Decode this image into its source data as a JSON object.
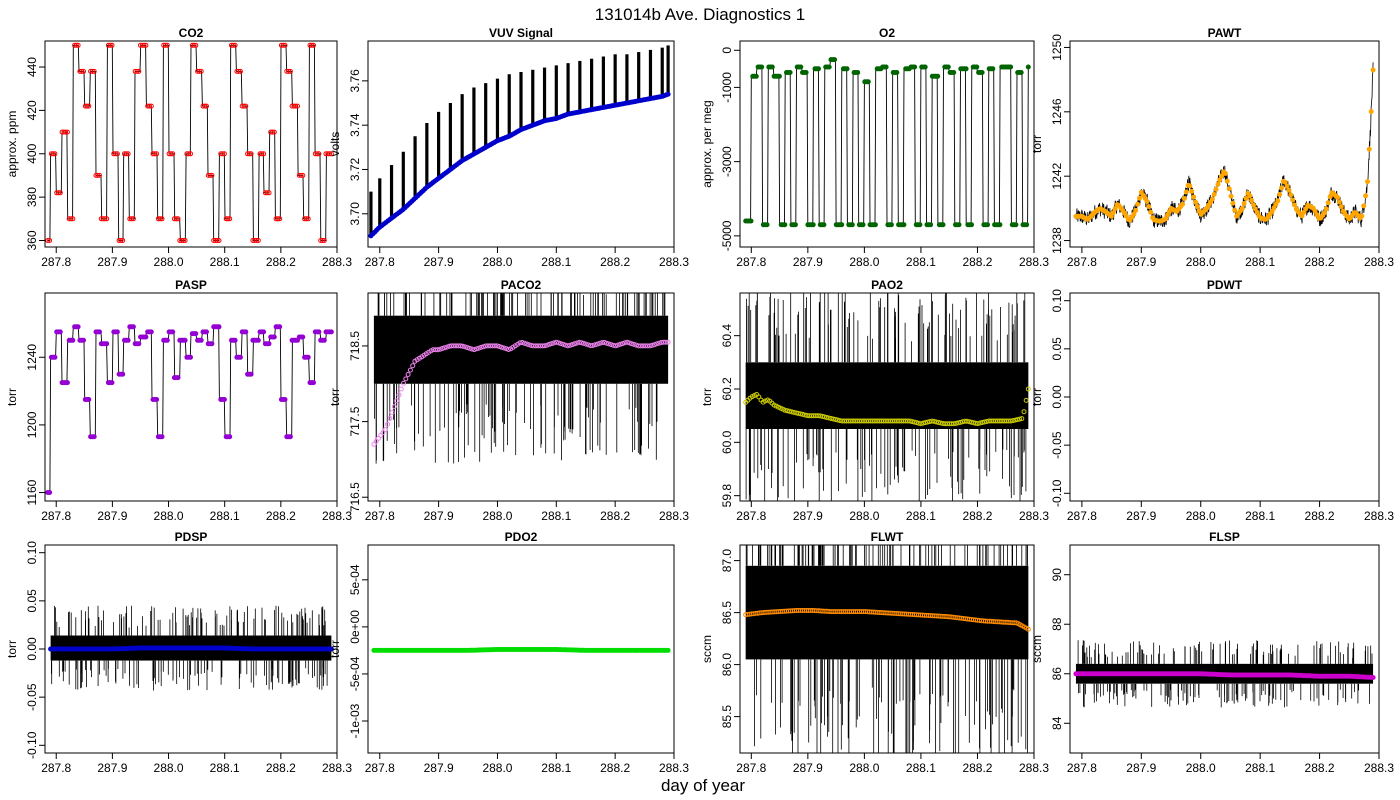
{
  "figure": {
    "title": "131014b   Ave. Diagnostics 1",
    "xlabel": "day of year"
  },
  "chart_data": [
    {
      "type": "line",
      "title": "CO2",
      "ylabel": "approx. ppm",
      "xlim": [
        287.78,
        288.3
      ],
      "ylim": [
        357,
        452
      ],
      "xticks": [
        "287.8",
        "287.9",
        "288.0",
        "288.1",
        "288.2",
        "288.3"
      ],
      "yticks": [
        "360",
        "380",
        "400",
        "420",
        "440"
      ],
      "style": "step",
      "point_color": "#ff0000",
      "points_hollow": true,
      "n_points": 160,
      "x": [
        287.785,
        287.79,
        287.8,
        287.81,
        287.82,
        287.83,
        287.84,
        287.85,
        287.86,
        287.87,
        287.88,
        287.89,
        287.9,
        287.91,
        287.92,
        287.93,
        287.94,
        287.95,
        287.96,
        287.97,
        287.98,
        287.99,
        288.0,
        288.01,
        288.02,
        288.03,
        288.04,
        288.05,
        288.06,
        288.07,
        288.08,
        288.09,
        288.1,
        288.11,
        288.12,
        288.13,
        288.14,
        288.15,
        288.16,
        288.17,
        288.18,
        288.19,
        288.2,
        288.21,
        288.22,
        288.23,
        288.24,
        288.25,
        288.26,
        288.27,
        288.28,
        288.29
      ],
      "y": [
        360,
        400,
        382,
        410,
        370,
        450,
        438,
        422,
        438,
        390,
        370,
        450,
        400,
        360,
        400,
        370,
        438,
        450,
        422,
        400,
        370,
        450,
        400,
        370,
        360,
        400,
        450,
        438,
        422,
        390,
        360,
        400,
        370,
        450,
        438,
        422,
        400,
        360,
        400,
        382,
        410,
        370,
        450,
        438,
        422,
        390,
        370,
        450,
        400,
        360,
        400,
        400
      ]
    },
    {
      "type": "line",
      "title": "VUV Signal",
      "ylabel": "volts",
      "xlim": [
        287.78,
        288.3
      ],
      "ylim": [
        3.685,
        3.778
      ],
      "xticks": [
        "287.8",
        "287.9",
        "288.0",
        "288.1",
        "288.2",
        "288.3"
      ],
      "yticks": [
        "3.70",
        "3.72",
        "3.74",
        "3.76"
      ],
      "style": "spikes",
      "point_color": "#0000cc",
      "points_hollow": false,
      "n_points": 160,
      "x": [
        287.785,
        287.8,
        287.82,
        287.84,
        287.86,
        287.88,
        287.9,
        287.92,
        287.94,
        287.96,
        287.98,
        288.0,
        288.02,
        288.04,
        288.06,
        288.08,
        288.1,
        288.12,
        288.14,
        288.16,
        288.18,
        288.2,
        288.22,
        288.24,
        288.26,
        288.28,
        288.29
      ],
      "y": [
        3.69,
        3.694,
        3.698,
        3.702,
        3.707,
        3.712,
        3.716,
        3.72,
        3.724,
        3.727,
        3.73,
        3.733,
        3.735,
        3.738,
        3.74,
        3.742,
        3.743,
        3.745,
        3.746,
        3.747,
        3.748,
        3.749,
        3.75,
        3.751,
        3.752,
        3.753,
        3.754
      ],
      "spike_top_y": [
        3.71,
        3.716,
        3.722,
        3.728,
        3.735,
        3.741,
        3.746,
        3.75,
        3.754,
        3.757,
        3.759,
        3.761,
        3.763,
        3.764,
        3.765,
        3.766,
        3.767,
        3.768,
        3.769,
        3.77,
        3.771,
        3.772,
        3.772,
        3.773,
        3.774,
        3.775,
        3.776
      ]
    },
    {
      "type": "line",
      "title": "O2",
      "ylabel": "approx. per meg",
      "xlim": [
        287.78,
        288.3
      ],
      "ylim": [
        -5300,
        250
      ],
      "xticks": [
        "287.8",
        "287.9",
        "288.0",
        "288.1",
        "288.2",
        "288.3"
      ],
      "yticks": [
        "-5000",
        "-3000",
        "-1000",
        "0"
      ],
      "style": "step",
      "point_color": "#006400",
      "points_hollow": false,
      "n_points": 160,
      "x": [
        287.79,
        287.8,
        287.81,
        287.82,
        287.83,
        287.84,
        287.85,
        287.86,
        287.87,
        287.88,
        287.89,
        287.9,
        287.91,
        287.92,
        287.93,
        287.94,
        287.95,
        287.96,
        287.97,
        287.98,
        287.99,
        288.0,
        288.01,
        288.02,
        288.03,
        288.04,
        288.05,
        288.06,
        288.07,
        288.08,
        288.09,
        288.1,
        288.11,
        288.12,
        288.13,
        288.14,
        288.15,
        288.16,
        288.17,
        288.18,
        288.19,
        288.2,
        288.21,
        288.22,
        288.23,
        288.24,
        288.25,
        288.26,
        288.27,
        288.28,
        288.29
      ],
      "y": [
        -4600,
        -700,
        -450,
        -4700,
        -450,
        -700,
        -4700,
        -600,
        -4700,
        -450,
        -600,
        -4700,
        -500,
        -4700,
        -450,
        -250,
        -4700,
        -500,
        -4700,
        -600,
        -4700,
        -850,
        -4700,
        -500,
        -450,
        -4700,
        -600,
        -4700,
        -500,
        -450,
        -4700,
        -450,
        -4700,
        -700,
        -4700,
        -450,
        -600,
        -4700,
        -500,
        -4700,
        -450,
        -600,
        -4700,
        -500,
        -4700,
        -450,
        -450,
        -4700,
        -600,
        -4700,
        -450
      ]
    },
    {
      "type": "line",
      "title": "PAWT",
      "ylabel": "torr",
      "xlim": [
        287.78,
        288.3
      ],
      "ylim": [
        1237.6,
        1250.4
      ],
      "xticks": [
        "287.8",
        "287.9",
        "288.0",
        "288.1",
        "288.2",
        "288.3"
      ],
      "yticks": [
        "1238",
        "1242",
        "1246",
        "1250"
      ],
      "style": "noisy",
      "noise": 1.0,
      "point_color": "#ffa500",
      "points_hollow": false,
      "n_points": 160,
      "x": [
        287.79,
        287.8,
        287.81,
        287.82,
        287.83,
        287.84,
        287.85,
        287.86,
        287.87,
        287.88,
        287.89,
        287.9,
        287.91,
        287.92,
        287.93,
        287.94,
        287.95,
        287.96,
        287.97,
        287.98,
        287.99,
        288.0,
        288.01,
        288.02,
        288.03,
        288.04,
        288.05,
        288.06,
        288.07,
        288.08,
        288.09,
        288.1,
        288.11,
        288.12,
        288.13,
        288.14,
        288.15,
        288.16,
        288.17,
        288.18,
        288.19,
        288.2,
        288.21,
        288.22,
        288.23,
        288.24,
        288.25,
        288.26,
        288.27,
        288.28,
        288.285,
        288.29
      ],
      "y": [
        1239.5,
        1239.5,
        1239.3,
        1239.7,
        1240.0,
        1239.8,
        1239.5,
        1240.3,
        1239.8,
        1239.2,
        1239.8,
        1241.0,
        1240.4,
        1239.3,
        1239.2,
        1239.3,
        1240.0,
        1239.8,
        1240.3,
        1241.6,
        1240.5,
        1239.6,
        1240.0,
        1240.6,
        1241.6,
        1242.4,
        1240.9,
        1239.5,
        1240.0,
        1241.0,
        1240.1,
        1239.4,
        1239.3,
        1239.8,
        1240.5,
        1241.8,
        1241.0,
        1240.0,
        1239.5,
        1240.2,
        1240.0,
        1239.3,
        1239.8,
        1241.0,
        1240.7,
        1239.8,
        1239.3,
        1239.8,
        1239.3,
        1241.3,
        1244.5,
        1248.6
      ]
    },
    {
      "type": "line",
      "title": "PASP",
      "ylabel": "torr",
      "xlim": [
        287.78,
        288.3
      ],
      "ylim": [
        1155,
        1278
      ],
      "xticks": [
        "287.8",
        "287.9",
        "288.0",
        "288.1",
        "288.2",
        "288.3"
      ],
      "yticks": [
        "1160",
        "1200",
        "1240"
      ],
      "style": "step",
      "point_color": "#9400d3",
      "points_hollow": false,
      "n_points": 160,
      "x": [
        287.785,
        287.79,
        287.8,
        287.81,
        287.82,
        287.83,
        287.84,
        287.85,
        287.86,
        287.87,
        287.88,
        287.89,
        287.9,
        287.91,
        287.92,
        287.93,
        287.94,
        287.95,
        287.96,
        287.97,
        287.98,
        287.99,
        288.0,
        288.01,
        288.02,
        288.03,
        288.04,
        288.05,
        288.06,
        288.07,
        288.08,
        288.09,
        288.1,
        288.11,
        288.12,
        288.13,
        288.14,
        288.15,
        288.16,
        288.17,
        288.18,
        288.19,
        288.2,
        288.21,
        288.22,
        288.23,
        288.24,
        288.25,
        288.26,
        288.27,
        288.28,
        288.29
      ],
      "y": [
        1160,
        1240,
        1255,
        1225,
        1250,
        1258,
        1250,
        1215,
        1193,
        1255,
        1248,
        1225,
        1255,
        1230,
        1250,
        1258,
        1248,
        1252,
        1255,
        1215,
        1193,
        1250,
        1255,
        1228,
        1250,
        1240,
        1254,
        1250,
        1255,
        1248,
        1258,
        1215,
        1193,
        1250,
        1240,
        1255,
        1230,
        1250,
        1255,
        1248,
        1252,
        1258,
        1215,
        1193,
        1250,
        1252,
        1240,
        1225,
        1255,
        1250,
        1255,
        1255
      ]
    },
    {
      "type": "line",
      "title": "PACO2",
      "ylabel": "torr",
      "xlim": [
        287.78,
        288.3
      ],
      "ylim": [
        716.45,
        719.2
      ],
      "xticks": [
        "287.8",
        "287.9",
        "288.0",
        "288.1",
        "288.2",
        "288.3"
      ],
      "yticks": [
        "716.5",
        "717.5",
        "718.5"
      ],
      "style": "band",
      "band_lo": 718.0,
      "band_hi": 718.9,
      "point_color": "#ee82ee",
      "points_hollow": true,
      "n_points": 130,
      "x": [
        287.79,
        287.8,
        287.81,
        287.82,
        287.83,
        287.84,
        287.85,
        287.86,
        287.87,
        287.88,
        287.89,
        287.9,
        287.92,
        287.94,
        287.96,
        287.98,
        288.0,
        288.02,
        288.04,
        288.06,
        288.08,
        288.1,
        288.12,
        288.14,
        288.16,
        288.18,
        288.2,
        288.22,
        288.24,
        288.26,
        288.28,
        288.29
      ],
      "y": [
        717.2,
        717.3,
        717.4,
        717.6,
        717.8,
        718.0,
        718.15,
        718.3,
        718.35,
        718.4,
        718.45,
        718.45,
        718.5,
        718.5,
        718.45,
        718.5,
        718.5,
        718.45,
        718.55,
        718.5,
        718.5,
        718.55,
        718.5,
        718.55,
        718.5,
        718.55,
        718.5,
        718.55,
        718.5,
        718.5,
        718.55,
        718.55
      ]
    },
    {
      "type": "line",
      "title": "PAO2",
      "ylabel": "torr",
      "xlim": [
        287.78,
        288.3
      ],
      "ylim": [
        59.78,
        60.56
      ],
      "xticks": [
        "287.8",
        "287.9",
        "288.0",
        "288.1",
        "288.2",
        "288.3"
      ],
      "yticks": [
        "59.8",
        "60.0",
        "60.2",
        "60.4"
      ],
      "style": "band",
      "band_lo": 60.05,
      "band_hi": 60.3,
      "point_color": "#cccc00",
      "points_hollow": true,
      "n_points": 130,
      "x": [
        287.79,
        287.8,
        287.81,
        287.82,
        287.83,
        287.84,
        287.85,
        287.86,
        287.88,
        287.9,
        287.92,
        287.94,
        287.96,
        287.98,
        288.0,
        288.02,
        288.04,
        288.06,
        288.08,
        288.1,
        288.12,
        288.14,
        288.16,
        288.18,
        288.2,
        288.22,
        288.24,
        288.26,
        288.28,
        288.29
      ],
      "y": [
        60.15,
        60.17,
        60.18,
        60.15,
        60.16,
        60.14,
        60.13,
        60.12,
        60.11,
        60.1,
        60.1,
        60.09,
        60.08,
        60.08,
        60.08,
        60.08,
        60.08,
        60.08,
        60.08,
        60.07,
        60.08,
        60.07,
        60.07,
        60.08,
        60.07,
        60.08,
        60.08,
        60.08,
        60.09,
        60.2
      ]
    },
    {
      "type": "line",
      "title": "PDWT",
      "ylabel": "torr",
      "xlim": [
        287.78,
        288.3
      ],
      "ylim": [
        -0.108,
        0.108
      ],
      "xticks": [
        "287.8",
        "287.9",
        "288.0",
        "288.1",
        "288.2",
        "288.3"
      ],
      "yticks": [
        "-0.10",
        "-0.05",
        "0.00",
        "0.05",
        "0.10"
      ],
      "style": "none",
      "point_color": "#000000",
      "points_hollow": false,
      "n_points": 0,
      "x": [],
      "y": []
    },
    {
      "type": "line",
      "title": "PDSP",
      "ylabel": "torr",
      "xlim": [
        287.78,
        288.3
      ],
      "ylim": [
        -0.108,
        0.108
      ],
      "xticks": [
        "287.8",
        "287.9",
        "288.0",
        "288.1",
        "288.2",
        "288.3"
      ],
      "yticks": [
        "-0.10",
        "-0.05",
        "0.00",
        "0.05",
        "0.10"
      ],
      "style": "band",
      "band_lo": -0.012,
      "band_hi": 0.014,
      "point_color": "#0000cc",
      "points_hollow": false,
      "n_points": 160,
      "x": [
        287.79,
        287.85,
        287.9,
        287.95,
        288.0,
        288.05,
        288.1,
        288.15,
        288.2,
        288.25,
        288.29
      ],
      "y": [
        0.0,
        0.0,
        0.0,
        0.001,
        0.001,
        0.001,
        0.001,
        0.0,
        0.0,
        0.0,
        0.0
      ]
    },
    {
      "type": "line",
      "title": "PDO2",
      "ylabel": "torr",
      "xlim": [
        287.78,
        288.3
      ],
      "ylim": [
        -0.00134,
        0.00087
      ],
      "xticks": [
        "287.8",
        "287.9",
        "288.0",
        "288.1",
        "288.2",
        "288.3"
      ],
      "yticks": [
        "-1e-03",
        "-5e-04",
        "0e+00",
        "5e-04"
      ],
      "style": "flat",
      "point_color": "#00dd00",
      "points_hollow": false,
      "n_points": 160,
      "x": [
        287.79,
        287.85,
        287.9,
        287.95,
        288.0,
        288.05,
        288.1,
        288.15,
        288.2,
        288.25,
        288.29
      ],
      "y": [
        -0.00025,
        -0.00025,
        -0.00025,
        -0.00025,
        -0.00024,
        -0.00024,
        -0.00024,
        -0.00025,
        -0.00025,
        -0.00025,
        -0.00025
      ]
    },
    {
      "type": "line",
      "title": "FLWT",
      "ylabel": "sccm",
      "xlim": [
        287.78,
        288.3
      ],
      "ylim": [
        85.15,
        87.15
      ],
      "xticks": [
        "287.8",
        "287.9",
        "288.0",
        "288.1",
        "288.2",
        "288.3"
      ],
      "yticks": [
        "85.5",
        "86.0",
        "86.5",
        "87.0"
      ],
      "style": "band",
      "band_lo": 86.05,
      "band_hi": 86.95,
      "point_color": "#ff8c00",
      "points_hollow": true,
      "n_points": 140,
      "x": [
        287.79,
        287.82,
        287.85,
        287.88,
        287.91,
        287.94,
        287.97,
        288.0,
        288.03,
        288.06,
        288.09,
        288.12,
        288.15,
        288.18,
        288.21,
        288.24,
        288.27,
        288.29
      ],
      "y": [
        86.48,
        86.5,
        86.51,
        86.52,
        86.52,
        86.51,
        86.51,
        86.51,
        86.5,
        86.49,
        86.48,
        86.47,
        86.46,
        86.44,
        86.42,
        86.41,
        86.4,
        86.34
      ]
    },
    {
      "type": "line",
      "title": "FLSP",
      "ylabel": "sccm",
      "xlim": [
        287.78,
        288.3
      ],
      "ylim": [
        82.8,
        91.2
      ],
      "xticks": [
        "287.8",
        "287.9",
        "288.0",
        "288.1",
        "288.2",
        "288.3"
      ],
      "yticks": [
        "84",
        "86",
        "88",
        "90"
      ],
      "style": "band",
      "band_lo": 85.6,
      "band_hi": 86.4,
      "point_color": "#cc00cc",
      "points_hollow": false,
      "n_points": 160,
      "x": [
        287.79,
        287.85,
        287.9,
        287.95,
        288.0,
        288.05,
        288.1,
        288.15,
        288.2,
        288.25,
        288.29
      ],
      "y": [
        86.0,
        86.0,
        86.0,
        86.0,
        86.0,
        85.95,
        85.95,
        85.95,
        85.9,
        85.9,
        85.85
      ]
    }
  ]
}
